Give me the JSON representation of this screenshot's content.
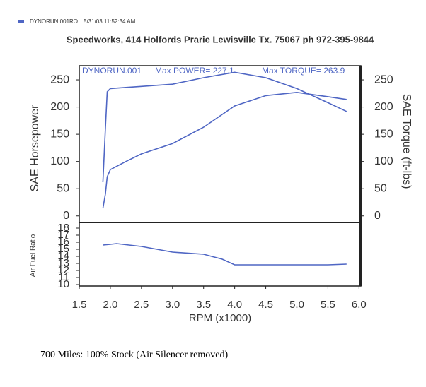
{
  "header": {
    "legend": "DYNORUN.001RO",
    "timestamp": "5/31/03 11:52:34 AM",
    "address": "Speedworks, 414 Holfords Prarie Lewisville Tx. 75067  ph 972-395-9844"
  },
  "caption": "700 Miles: 100% Stock (Air Silencer removed)",
  "chart_data": [
    {
      "type": "line",
      "annotations": [
        "DYNORUN.001",
        "Max POWER= 227.1",
        "Max TORQUE= 263.9"
      ],
      "ylabel": "SAE Horsepower",
      "y2label": "SAE Torque (ft-lbs)",
      "x": [
        1.88,
        1.92,
        1.95,
        2.0,
        2.25,
        2.5,
        3.0,
        3.5,
        4.0,
        4.5,
        5.0,
        5.5,
        5.8
      ],
      "xlim": [
        1.5,
        6.03
      ],
      "ylim": [
        -12,
        276
      ],
      "yticks": [
        0,
        50,
        100,
        150,
        200,
        250
      ],
      "y2lim": [
        -12,
        276
      ],
      "y2ticks": [
        0,
        50,
        100,
        150,
        200,
        250
      ],
      "series": [
        {
          "color": "#4f66c4",
          "values": [
            14,
            40,
            72,
            85,
            100,
            114,
            133,
            163,
            202,
            221,
            227,
            219,
            214
          ]
        },
        {
          "color": "#4f66c4",
          "axis": "y2",
          "values": [
            62,
            160,
            228,
            234,
            236,
            238,
            242,
            254,
            264,
            254,
            234,
            208,
            192
          ]
        }
      ]
    },
    {
      "type": "line",
      "ylabel": "Air Fuel Ratio",
      "xlabel": "RPM (x1000)",
      "x": [
        1.88,
        2.0,
        2.1,
        2.5,
        3.0,
        3.5,
        3.8,
        4.0,
        4.5,
        5.0,
        5.5,
        5.8
      ],
      "xlim": [
        1.5,
        6.03
      ],
      "xticks": [
        1.5,
        {
          "value": 2,
          "label": "2.0"
        },
        2.5,
        {
          "value": 3,
          "label": "3.0"
        },
        3.5,
        {
          "value": 4,
          "label": "4.0"
        },
        4.5,
        {
          "value": 5,
          "label": "5.0"
        },
        5.5,
        {
          "value": 6,
          "label": "6.0"
        }
      ],
      "ylim": [
        9.8,
        18.8
      ],
      "yticks": [
        10,
        11,
        12,
        13,
        14,
        15,
        16,
        17,
        18
      ],
      "series": [
        {
          "color": "#4f66c4",
          "values": [
            15.6,
            15.7,
            15.8,
            15.4,
            14.6,
            14.3,
            13.6,
            12.8,
            12.8,
            12.8,
            12.8,
            12.9
          ]
        }
      ]
    }
  ]
}
